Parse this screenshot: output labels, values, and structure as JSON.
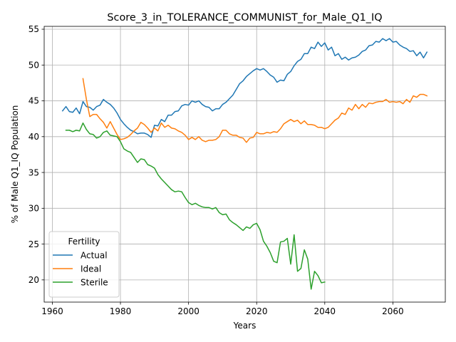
{
  "chart_data": {
    "type": "line",
    "title": "Score_3_in_TOLERANCE_COMMUNIST_for_Male_Q1_IQ",
    "xlabel": "Years",
    "ylabel": "% of Male Q1_IQ Population",
    "xlim": [
      1957.6,
      2075.4
    ],
    "ylim": [
      16.9,
      55.4
    ],
    "xticks": [
      1960,
      1980,
      2000,
      2020,
      2040,
      2060
    ],
    "yticks": [
      20,
      25,
      30,
      35,
      40,
      45,
      50,
      55
    ],
    "grid": true,
    "legend": {
      "title": "Fertility",
      "position": "lower-left"
    },
    "series": [
      {
        "name": "Actual",
        "color": "#1f77b4",
        "x": [
          1963,
          1964,
          1965,
          1966,
          1967,
          1968,
          1969,
          1970,
          1971,
          1972,
          1973,
          1974,
          1975,
          1976,
          1977,
          1978,
          1979,
          1980,
          1981,
          1982,
          1983,
          1984,
          1985,
          1986,
          1987,
          1988,
          1989,
          1990,
          1991,
          1992,
          1993,
          1994,
          1995,
          1996,
          1997,
          1998,
          1999,
          2000,
          2001,
          2002,
          2003,
          2004,
          2005,
          2006,
          2007,
          2008,
          2009,
          2010,
          2011,
          2012,
          2013,
          2014,
          2015,
          2016,
          2017,
          2018,
          2019,
          2020,
          2021,
          2022,
          2023,
          2024,
          2025,
          2026,
          2027,
          2028,
          2029,
          2030,
          2031,
          2032,
          2033,
          2034,
          2035,
          2036,
          2037,
          2038,
          2039,
          2040,
          2041,
          2042,
          2043,
          2044,
          2045,
          2046,
          2047,
          2048,
          2049,
          2050,
          2051,
          2052,
          2053,
          2054,
          2055,
          2056,
          2057,
          2058,
          2059,
          2060,
          2061,
          2062,
          2063,
          2064,
          2065,
          2066,
          2067,
          2068,
          2069,
          2070
        ],
        "y": [
          43.6,
          44.2,
          43.5,
          43.4,
          44.0,
          43.2,
          44.9,
          44.2,
          44.1,
          43.7,
          44.2,
          44.4,
          45.2,
          44.8,
          44.5,
          44.0,
          43.3,
          42.4,
          41.8,
          41.3,
          40.9,
          40.7,
          40.4,
          40.5,
          40.5,
          40.3,
          39.9,
          41.6,
          41.5,
          42.4,
          42.1,
          43.0,
          43.0,
          43.5,
          43.6,
          44.3,
          44.5,
          44.4,
          45.0,
          44.8,
          45.0,
          44.5,
          44.2,
          44.1,
          43.6,
          43.9,
          43.9,
          44.5,
          44.8,
          45.3,
          45.8,
          46.6,
          47.4,
          47.8,
          48.4,
          48.8,
          49.2,
          49.5,
          49.3,
          49.5,
          49.1,
          48.6,
          48.3,
          47.6,
          47.9,
          47.8,
          48.7,
          49.1,
          49.9,
          50.5,
          50.8,
          51.6,
          51.6,
          52.5,
          52.3,
          53.2,
          52.6,
          53.1,
          52.1,
          52.5,
          51.3,
          51.6,
          50.8,
          51.1,
          50.7,
          51.0,
          51.1,
          51.4,
          51.9,
          52.1,
          52.7,
          52.8,
          53.3,
          53.2,
          53.7,
          53.4,
          53.7,
          53.2,
          53.3,
          52.8,
          52.5,
          52.3,
          51.9,
          52.0,
          51.3,
          51.8,
          51.0,
          51.8
        ]
      },
      {
        "name": "Ideal",
        "color": "#ff7f0e",
        "x": [
          1969,
          1970,
          1971,
          1972,
          1973,
          1974,
          1975,
          1976,
          1977,
          1978,
          1979,
          1980,
          1981,
          1982,
          1983,
          1984,
          1985,
          1986,
          1987,
          1988,
          1989,
          1990,
          1991,
          1992,
          1993,
          1994,
          1995,
          1996,
          1997,
          1998,
          1999,
          2000,
          2001,
          2002,
          2003,
          2004,
          2005,
          2006,
          2007,
          2008,
          2009,
          2010,
          2011,
          2012,
          2013,
          2014,
          2015,
          2016,
          2017,
          2018,
          2019,
          2020,
          2021,
          2022,
          2023,
          2024,
          2025,
          2026,
          2027,
          2028,
          2029,
          2030,
          2031,
          2032,
          2033,
          2034,
          2035,
          2036,
          2037,
          2038,
          2039,
          2040,
          2041,
          2042,
          2043,
          2044,
          2045,
          2046,
          2047,
          2048,
          2049,
          2050,
          2051,
          2052,
          2053,
          2054,
          2055,
          2056,
          2057,
          2058,
          2059,
          2060,
          2061,
          2062,
          2063,
          2064,
          2065,
          2066,
          2067,
          2068,
          2069,
          2070
        ],
        "y": [
          48.1,
          45.2,
          42.8,
          43.1,
          43.1,
          42.5,
          42.0,
          41.2,
          42.1,
          41.2,
          40.3,
          39.6,
          39.7,
          39.9,
          40.3,
          40.8,
          41.2,
          42.0,
          41.7,
          41.2,
          40.6,
          41.2,
          40.8,
          41.9,
          41.3,
          41.6,
          41.2,
          41.1,
          40.8,
          40.6,
          40.2,
          39.6,
          39.9,
          39.6,
          40.0,
          39.5,
          39.3,
          39.5,
          39.5,
          39.6,
          40.0,
          40.9,
          40.9,
          40.4,
          40.2,
          40.2,
          39.9,
          39.8,
          39.2,
          39.8,
          39.9,
          40.6,
          40.4,
          40.4,
          40.6,
          40.5,
          40.7,
          40.6,
          41.1,
          41.8,
          42.1,
          42.4,
          42.1,
          42.3,
          41.8,
          42.2,
          41.7,
          41.7,
          41.6,
          41.3,
          41.3,
          41.1,
          41.3,
          41.8,
          42.3,
          42.6,
          43.3,
          43.1,
          44.0,
          43.7,
          44.5,
          43.9,
          44.5,
          44.1,
          44.7,
          44.6,
          44.8,
          44.9,
          44.9,
          45.2,
          44.8,
          44.9,
          44.8,
          44.9,
          44.6,
          45.2,
          44.8,
          45.7,
          45.5,
          45.9,
          45.9,
          45.7
        ]
      },
      {
        "name": "Sterile",
        "color": "#2ca02c",
        "x": [
          1964,
          1965,
          1966,
          1967,
          1968,
          1969,
          1970,
          1971,
          1972,
          1973,
          1974,
          1975,
          1976,
          1977,
          1978,
          1979,
          1980,
          1981,
          1982,
          1983,
          1984,
          1985,
          1986,
          1987,
          1988,
          1989,
          1990,
          1991,
          1992,
          1993,
          1994,
          1995,
          1996,
          1997,
          1998,
          1999,
          2000,
          2001,
          2002,
          2003,
          2004,
          2005,
          2006,
          2007,
          2008,
          2009,
          2010,
          2011,
          2012,
          2013,
          2014,
          2015,
          2016,
          2017,
          2018,
          2019,
          2020,
          2021,
          2022,
          2023,
          2024,
          2025,
          2026,
          2027,
          2028,
          2029,
          2030,
          2031,
          2032,
          2033,
          2034,
          2035,
          2036,
          2037,
          2038,
          2039,
          2040
        ],
        "y": [
          40.9,
          40.9,
          40.7,
          40.9,
          40.8,
          41.9,
          41.0,
          40.4,
          40.3,
          39.8,
          40.0,
          40.6,
          40.8,
          40.2,
          40.1,
          40.0,
          39.3,
          38.3,
          38.0,
          37.8,
          37.1,
          36.4,
          36.9,
          36.8,
          36.1,
          35.9,
          35.6,
          34.7,
          34.1,
          33.6,
          33.1,
          32.6,
          32.3,
          32.4,
          32.3,
          31.5,
          30.8,
          30.5,
          30.7,
          30.4,
          30.2,
          30.1,
          30.1,
          29.9,
          30.1,
          29.4,
          29.1,
          29.2,
          28.4,
          28.0,
          27.7,
          27.3,
          26.9,
          27.4,
          27.2,
          27.7,
          27.9,
          27.0,
          25.4,
          24.7,
          23.8,
          22.6,
          22.4,
          25.3,
          25.4,
          25.8,
          22.2,
          26.3,
          21.2,
          21.6,
          24.2,
          22.9,
          18.7,
          21.2,
          20.6,
          19.6,
          19.7
        ]
      }
    ]
  }
}
